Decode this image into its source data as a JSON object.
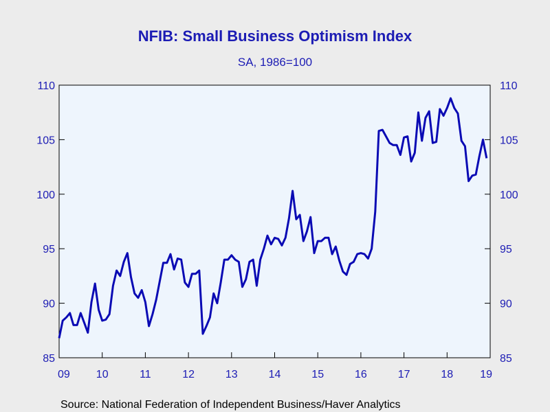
{
  "chart_data": {
    "type": "line",
    "title": "NFIB: Small Business Optimism Index",
    "subtitle": "SA, 1986=100",
    "source": "Source:  National Federation of Independent Business/Haver Analytics",
    "xlabel": "",
    "ylabel": "",
    "x_tick_labels": [
      "09",
      "10",
      "11",
      "12",
      "13",
      "14",
      "15",
      "16",
      "17",
      "18",
      "19"
    ],
    "y_ticks": [
      85,
      90,
      95,
      100,
      105,
      110
    ],
    "y_tick_labels": [
      "85",
      "90",
      "95",
      "100",
      "105",
      "110"
    ],
    "ylim": [
      85,
      110
    ],
    "xlim": [
      2009.0,
      2019.0
    ],
    "grid": false,
    "legend": "none",
    "colors": {
      "line": "#0a0ab4",
      "plot_bg": "#eef5fd",
      "axis": "#000000",
      "text": "#1c1cb4"
    },
    "series": [
      {
        "values": [
          [
            2009.0,
            86.8
          ],
          [
            2009.083,
            88.4
          ],
          [
            2009.167,
            88.7
          ],
          [
            2009.25,
            89.1
          ],
          [
            2009.333,
            88.0
          ],
          [
            2009.417,
            88.0
          ],
          [
            2009.5,
            89.1
          ],
          [
            2009.583,
            88.2
          ],
          [
            2009.667,
            87.3
          ],
          [
            2009.75,
            90.1
          ],
          [
            2009.833,
            91.8
          ],
          [
            2009.917,
            89.4
          ],
          [
            2010.0,
            88.4
          ],
          [
            2010.083,
            88.5
          ],
          [
            2010.167,
            89.0
          ],
          [
            2010.25,
            91.6
          ],
          [
            2010.333,
            93.0
          ],
          [
            2010.417,
            92.5
          ],
          [
            2010.5,
            93.8
          ],
          [
            2010.583,
            94.6
          ],
          [
            2010.667,
            92.4
          ],
          [
            2010.75,
            90.9
          ],
          [
            2010.833,
            90.5
          ],
          [
            2010.917,
            91.2
          ],
          [
            2011.0,
            90.1
          ],
          [
            2011.083,
            87.9
          ],
          [
            2011.167,
            89.0
          ],
          [
            2011.25,
            90.3
          ],
          [
            2011.333,
            92.0
          ],
          [
            2011.417,
            93.7
          ],
          [
            2011.5,
            93.7
          ],
          [
            2011.583,
            94.5
          ],
          [
            2011.667,
            93.1
          ],
          [
            2011.75,
            94.1
          ],
          [
            2011.833,
            94.0
          ],
          [
            2011.917,
            91.9
          ],
          [
            2012.0,
            91.5
          ],
          [
            2012.083,
            92.7
          ],
          [
            2012.167,
            92.7
          ],
          [
            2012.25,
            93.0
          ],
          [
            2012.333,
            87.2
          ],
          [
            2012.417,
            87.9
          ],
          [
            2012.5,
            88.7
          ],
          [
            2012.583,
            90.9
          ],
          [
            2012.667,
            90.0
          ],
          [
            2012.75,
            91.9
          ],
          [
            2012.833,
            94.0
          ],
          [
            2012.917,
            94.0
          ],
          [
            2013.0,
            94.4
          ],
          [
            2013.083,
            94.0
          ],
          [
            2013.167,
            93.8
          ],
          [
            2013.25,
            91.5
          ],
          [
            2013.333,
            92.2
          ],
          [
            2013.417,
            93.8
          ],
          [
            2013.5,
            94.0
          ],
          [
            2013.583,
            91.6
          ],
          [
            2013.667,
            94.0
          ],
          [
            2013.75,
            95.0
          ],
          [
            2013.833,
            96.2
          ],
          [
            2013.917,
            95.4
          ],
          [
            2014.0,
            96.0
          ],
          [
            2014.083,
            95.9
          ],
          [
            2014.167,
            95.3
          ],
          [
            2014.25,
            96.0
          ],
          [
            2014.333,
            97.8
          ],
          [
            2014.417,
            100.3
          ],
          [
            2014.5,
            97.7
          ],
          [
            2014.583,
            98.1
          ],
          [
            2014.667,
            95.7
          ],
          [
            2014.75,
            96.6
          ],
          [
            2014.833,
            97.9
          ],
          [
            2014.917,
            94.6
          ],
          [
            2015.0,
            95.7
          ],
          [
            2015.083,
            95.7
          ],
          [
            2015.167,
            96.0
          ],
          [
            2015.25,
            96.0
          ],
          [
            2015.333,
            94.5
          ],
          [
            2015.417,
            95.2
          ],
          [
            2015.5,
            93.9
          ],
          [
            2015.583,
            92.9
          ],
          [
            2015.667,
            92.6
          ],
          [
            2015.75,
            93.6
          ],
          [
            2015.833,
            93.8
          ],
          [
            2015.917,
            94.5
          ],
          [
            2016.0,
            94.6
          ],
          [
            2016.083,
            94.5
          ],
          [
            2016.167,
            94.1
          ],
          [
            2016.25,
            95.0
          ],
          [
            2016.333,
            98.4
          ],
          [
            2016.417,
            105.8
          ],
          [
            2016.5,
            105.9
          ],
          [
            2016.583,
            105.3
          ],
          [
            2016.667,
            104.7
          ],
          [
            2016.75,
            104.5
          ],
          [
            2016.833,
            104.5
          ],
          [
            2016.917,
            103.6
          ],
          [
            2017.0,
            105.2
          ],
          [
            2017.083,
            105.3
          ],
          [
            2017.167,
            103.0
          ],
          [
            2017.25,
            103.8
          ],
          [
            2017.333,
            107.5
          ],
          [
            2017.417,
            104.9
          ],
          [
            2017.5,
            107.0
          ],
          [
            2017.583,
            107.6
          ],
          [
            2017.667,
            104.7
          ],
          [
            2017.75,
            104.8
          ],
          [
            2017.833,
            107.8
          ],
          [
            2017.917,
            107.2
          ],
          [
            2018.0,
            107.9
          ],
          [
            2018.083,
            108.8
          ],
          [
            2018.167,
            107.9
          ],
          [
            2018.25,
            107.4
          ],
          [
            2018.333,
            104.9
          ],
          [
            2018.417,
            104.4
          ],
          [
            2018.5,
            101.2
          ],
          [
            2018.583,
            101.7
          ],
          [
            2018.667,
            101.8
          ],
          [
            2018.75,
            103.5
          ],
          [
            2018.833,
            105.0
          ],
          [
            2018.917,
            103.3
          ]
        ]
      }
    ]
  }
}
